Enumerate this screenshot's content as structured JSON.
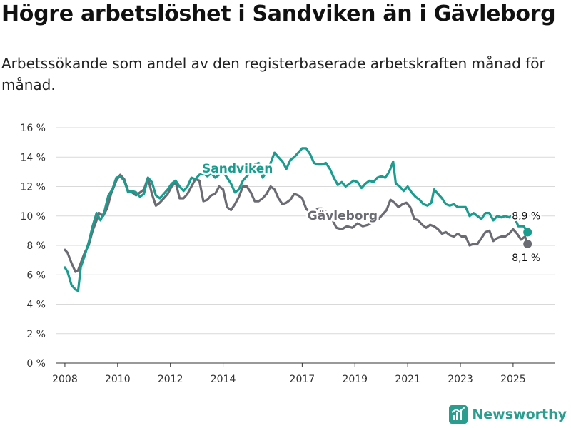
{
  "title": "Högre arbetslöshet i Sandviken än i Gävleborg",
  "subtitle": "Arbetssökande som andel av den registerbaserade arbetskraften månad för månad.",
  "brand": {
    "name": "Newsworthy",
    "icon": "newsworthy-logo-icon",
    "color": "#2a9d8f"
  },
  "chart_data": {
    "type": "line",
    "title": "Högre arbetslöshet i Sandviken än i Gävleborg",
    "subtitle": "Arbetssökande som andel av den registerbaserade arbetskraften månad för månad.",
    "xlabel": "",
    "ylabel": "",
    "ylim": [
      0,
      16
    ],
    "xlim": [
      2007.65,
      2026.6
    ],
    "y_ticks": [
      0,
      2,
      4,
      6,
      8,
      10,
      12,
      14,
      16
    ],
    "y_tick_labels": [
      "0 %",
      "2 %",
      "4 %",
      "6 %",
      "8 %",
      "10 %",
      "12 %",
      "14 %",
      "16 %"
    ],
    "x_ticks": [
      2008,
      2010,
      2012,
      2014,
      2017,
      2019,
      2021,
      2023,
      2025
    ],
    "x_tick_labels": [
      "2008",
      "2010",
      "2012",
      "2014",
      "2017",
      "2019",
      "2021",
      "2023",
      "2025"
    ],
    "grid": true,
    "series": [
      {
        "name": "Sandviken",
        "color": "#1a9c8e",
        "end_label": "8,9 %",
        "points": [
          [
            2008.0,
            6.5
          ],
          [
            2008.1,
            6.2
          ],
          [
            2008.25,
            5.3
          ],
          [
            2008.4,
            5.0
          ],
          [
            2008.5,
            4.9
          ],
          [
            2008.6,
            6.5
          ],
          [
            2008.75,
            7.3
          ],
          [
            2008.9,
            8.2
          ],
          [
            2009.05,
            9.3
          ],
          [
            2009.2,
            10.2
          ],
          [
            2009.35,
            9.7
          ],
          [
            2009.5,
            10.3
          ],
          [
            2009.65,
            11.4
          ],
          [
            2009.8,
            11.8
          ],
          [
            2009.95,
            12.6
          ],
          [
            2010.1,
            12.7
          ],
          [
            2010.25,
            12.4
          ],
          [
            2010.4,
            11.6
          ],
          [
            2010.55,
            11.7
          ],
          [
            2010.7,
            11.6
          ],
          [
            2010.85,
            11.3
          ],
          [
            2011.0,
            11.5
          ],
          [
            2011.15,
            12.6
          ],
          [
            2011.3,
            12.3
          ],
          [
            2011.45,
            11.4
          ],
          [
            2011.6,
            11.2
          ],
          [
            2011.75,
            11.5
          ],
          [
            2011.9,
            11.8
          ],
          [
            2012.05,
            12.2
          ],
          [
            2012.2,
            12.4
          ],
          [
            2012.35,
            12.0
          ],
          [
            2012.5,
            11.7
          ],
          [
            2012.65,
            12.0
          ],
          [
            2012.8,
            12.6
          ],
          [
            2012.95,
            12.5
          ],
          [
            2013.1,
            12.8
          ],
          [
            2013.25,
            12.9
          ],
          [
            2013.4,
            12.7
          ],
          [
            2013.55,
            12.9
          ],
          [
            2013.7,
            12.6
          ],
          [
            2013.85,
            12.8
          ],
          [
            2014.0,
            13.0
          ],
          [
            2014.15,
            12.6
          ],
          [
            2014.3,
            12.2
          ],
          [
            2014.45,
            11.6
          ],
          [
            2014.6,
            11.8
          ],
          [
            2014.75,
            12.4
          ],
          [
            2014.9,
            12.7
          ],
          [
            2015.05,
            13.0
          ],
          [
            2015.2,
            13.5
          ],
          [
            2015.35,
            13.6
          ],
          [
            2015.5,
            12.6
          ],
          [
            2015.65,
            13.0
          ],
          [
            2015.8,
            13.6
          ],
          [
            2015.95,
            14.3
          ],
          [
            2016.1,
            14.0
          ],
          [
            2016.25,
            13.7
          ],
          [
            2016.4,
            13.2
          ],
          [
            2016.55,
            13.8
          ],
          [
            2016.7,
            14.0
          ],
          [
            2016.85,
            14.3
          ],
          [
            2017.0,
            14.6
          ],
          [
            2017.15,
            14.6
          ],
          [
            2017.3,
            14.2
          ],
          [
            2017.45,
            13.6
          ],
          [
            2017.6,
            13.5
          ],
          [
            2017.75,
            13.5
          ],
          [
            2017.9,
            13.6
          ],
          [
            2018.05,
            13.2
          ],
          [
            2018.2,
            12.6
          ],
          [
            2018.35,
            12.1
          ],
          [
            2018.5,
            12.3
          ],
          [
            2018.65,
            12.0
          ],
          [
            2018.8,
            12.2
          ],
          [
            2018.95,
            12.4
          ],
          [
            2019.1,
            12.3
          ],
          [
            2019.25,
            11.9
          ],
          [
            2019.4,
            12.2
          ],
          [
            2019.55,
            12.4
          ],
          [
            2019.7,
            12.3
          ],
          [
            2019.85,
            12.6
          ],
          [
            2020.0,
            12.7
          ],
          [
            2020.15,
            12.6
          ],
          [
            2020.3,
            13.0
          ],
          [
            2020.45,
            13.7
          ],
          [
            2020.55,
            12.2
          ],
          [
            2020.7,
            12.0
          ],
          [
            2020.85,
            11.7
          ],
          [
            2021.0,
            12.0
          ],
          [
            2021.15,
            11.6
          ],
          [
            2021.3,
            11.3
          ],
          [
            2021.45,
            11.1
          ],
          [
            2021.6,
            10.8
          ],
          [
            2021.75,
            10.7
          ],
          [
            2021.9,
            10.9
          ],
          [
            2022.0,
            11.8
          ],
          [
            2022.15,
            11.5
          ],
          [
            2022.3,
            11.2
          ],
          [
            2022.45,
            10.8
          ],
          [
            2022.6,
            10.7
          ],
          [
            2022.75,
            10.8
          ],
          [
            2022.9,
            10.6
          ],
          [
            2023.05,
            10.6
          ],
          [
            2023.2,
            10.6
          ],
          [
            2023.35,
            10.0
          ],
          [
            2023.5,
            10.2
          ],
          [
            2023.65,
            10.0
          ],
          [
            2023.8,
            9.8
          ],
          [
            2023.95,
            10.2
          ],
          [
            2024.1,
            10.2
          ],
          [
            2024.25,
            9.7
          ],
          [
            2024.4,
            10.0
          ],
          [
            2024.55,
            9.9
          ],
          [
            2024.7,
            10.0
          ],
          [
            2024.85,
            9.9
          ],
          [
            2025.0,
            10.1
          ],
          [
            2025.2,
            9.3
          ],
          [
            2025.4,
            9.3
          ],
          [
            2025.55,
            8.9
          ]
        ]
      },
      {
        "name": "Gävleborg",
        "color": "#6b6b73",
        "end_label": "8,1 %",
        "points": [
          [
            2008.0,
            7.7
          ],
          [
            2008.1,
            7.5
          ],
          [
            2008.25,
            6.8
          ],
          [
            2008.4,
            6.2
          ],
          [
            2008.5,
            6.3
          ],
          [
            2008.6,
            6.8
          ],
          [
            2008.75,
            7.5
          ],
          [
            2008.9,
            8.0
          ],
          [
            2009.05,
            9.0
          ],
          [
            2009.2,
            9.7
          ],
          [
            2009.3,
            10.2
          ],
          [
            2009.45,
            10.0
          ],
          [
            2009.6,
            10.5
          ],
          [
            2009.75,
            11.5
          ],
          [
            2009.95,
            12.4
          ],
          [
            2010.1,
            12.8
          ],
          [
            2010.25,
            12.5
          ],
          [
            2010.4,
            11.7
          ],
          [
            2010.55,
            11.6
          ],
          [
            2010.7,
            11.4
          ],
          [
            2010.85,
            11.6
          ],
          [
            2011.0,
            11.8
          ],
          [
            2011.15,
            12.6
          ],
          [
            2011.3,
            11.5
          ],
          [
            2011.45,
            10.7
          ],
          [
            2011.6,
            10.9
          ],
          [
            2011.75,
            11.2
          ],
          [
            2011.9,
            11.5
          ],
          [
            2012.05,
            12.0
          ],
          [
            2012.2,
            12.3
          ],
          [
            2012.35,
            11.2
          ],
          [
            2012.5,
            11.2
          ],
          [
            2012.65,
            11.5
          ],
          [
            2012.8,
            12.0
          ],
          [
            2012.95,
            12.5
          ],
          [
            2013.1,
            12.4
          ],
          [
            2013.25,
            11.0
          ],
          [
            2013.4,
            11.1
          ],
          [
            2013.55,
            11.4
          ],
          [
            2013.7,
            11.5
          ],
          [
            2013.85,
            12.0
          ],
          [
            2014.0,
            11.8
          ],
          [
            2014.15,
            10.6
          ],
          [
            2014.3,
            10.4
          ],
          [
            2014.45,
            10.8
          ],
          [
            2014.6,
            11.3
          ],
          [
            2014.75,
            12.0
          ],
          [
            2014.9,
            12.0
          ],
          [
            2015.05,
            11.6
          ],
          [
            2015.2,
            11.0
          ],
          [
            2015.35,
            11.0
          ],
          [
            2015.5,
            11.2
          ],
          [
            2015.65,
            11.5
          ],
          [
            2015.8,
            12.0
          ],
          [
            2015.95,
            11.8
          ],
          [
            2016.1,
            11.2
          ],
          [
            2016.25,
            10.8
          ],
          [
            2016.4,
            10.9
          ],
          [
            2016.55,
            11.1
          ],
          [
            2016.7,
            11.5
          ],
          [
            2016.85,
            11.4
          ],
          [
            2017.0,
            11.2
          ],
          [
            2017.15,
            10.5
          ],
          [
            2017.3,
            10.2
          ],
          [
            2017.45,
            10.3
          ],
          [
            2017.6,
            10.5
          ],
          [
            2017.75,
            10.5
          ],
          [
            2017.9,
            10.3
          ],
          [
            2018.1,
            9.9
          ],
          [
            2018.3,
            9.2
          ],
          [
            2018.5,
            9.1
          ],
          [
            2018.7,
            9.3
          ],
          [
            2018.9,
            9.2
          ],
          [
            2019.1,
            9.5
          ],
          [
            2019.3,
            9.3
          ],
          [
            2019.5,
            9.4
          ],
          [
            2019.7,
            9.6
          ],
          [
            2019.9,
            9.8
          ],
          [
            2020.05,
            10.1
          ],
          [
            2020.2,
            10.4
          ],
          [
            2020.35,
            11.1
          ],
          [
            2020.5,
            10.9
          ],
          [
            2020.65,
            10.6
          ],
          [
            2020.8,
            10.8
          ],
          [
            2020.95,
            10.9
          ],
          [
            2021.1,
            10.6
          ],
          [
            2021.25,
            9.8
          ],
          [
            2021.4,
            9.7
          ],
          [
            2021.55,
            9.4
          ],
          [
            2021.7,
            9.2
          ],
          [
            2021.85,
            9.4
          ],
          [
            2022.0,
            9.3
          ],
          [
            2022.15,
            9.1
          ],
          [
            2022.3,
            8.8
          ],
          [
            2022.45,
            8.9
          ],
          [
            2022.6,
            8.7
          ],
          [
            2022.75,
            8.6
          ],
          [
            2022.9,
            8.8
          ],
          [
            2023.05,
            8.6
          ],
          [
            2023.2,
            8.6
          ],
          [
            2023.35,
            8.0
          ],
          [
            2023.5,
            8.1
          ],
          [
            2023.65,
            8.1
          ],
          [
            2023.8,
            8.5
          ],
          [
            2023.95,
            8.9
          ],
          [
            2024.1,
            9.0
          ],
          [
            2024.25,
            8.3
          ],
          [
            2024.4,
            8.5
          ],
          [
            2024.55,
            8.6
          ],
          [
            2024.7,
            8.6
          ],
          [
            2024.85,
            8.8
          ],
          [
            2025.0,
            9.1
          ],
          [
            2025.15,
            8.8
          ],
          [
            2025.3,
            8.4
          ],
          [
            2025.45,
            8.6
          ],
          [
            2025.55,
            8.1
          ]
        ]
      }
    ]
  }
}
